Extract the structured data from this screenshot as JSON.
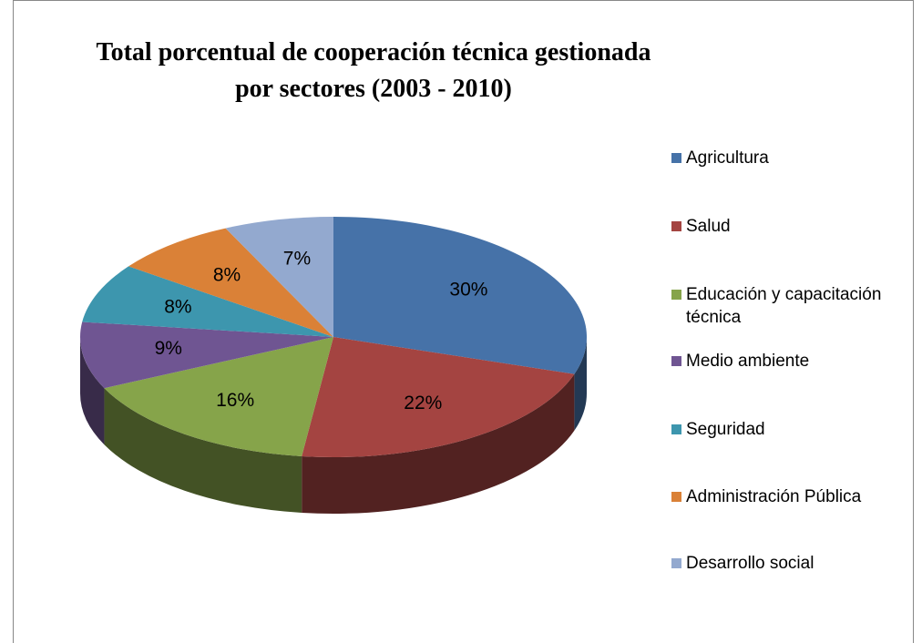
{
  "chart_data": {
    "type": "pie",
    "title": "Total porcentual de cooperación técnica gestionada por sectores (2003 - 2010)",
    "categories": [
      "Agricultura",
      "Salud",
      "Educación y capacitación técnica",
      "Medio ambiente",
      "Seguridad",
      "Administración Pública",
      "Desarrollo social"
    ],
    "values": [
      30,
      22,
      16,
      9,
      8,
      8,
      7
    ],
    "value_labels": [
      "30%",
      "22%",
      "16%",
      "9%",
      "8%",
      "8%",
      "7%"
    ],
    "colors": [
      "#4672a8",
      "#a44441",
      "#86a44a",
      "#6f5592",
      "#3d96ae",
      "#da8137",
      "#93a9cf"
    ],
    "legend": "right"
  }
}
